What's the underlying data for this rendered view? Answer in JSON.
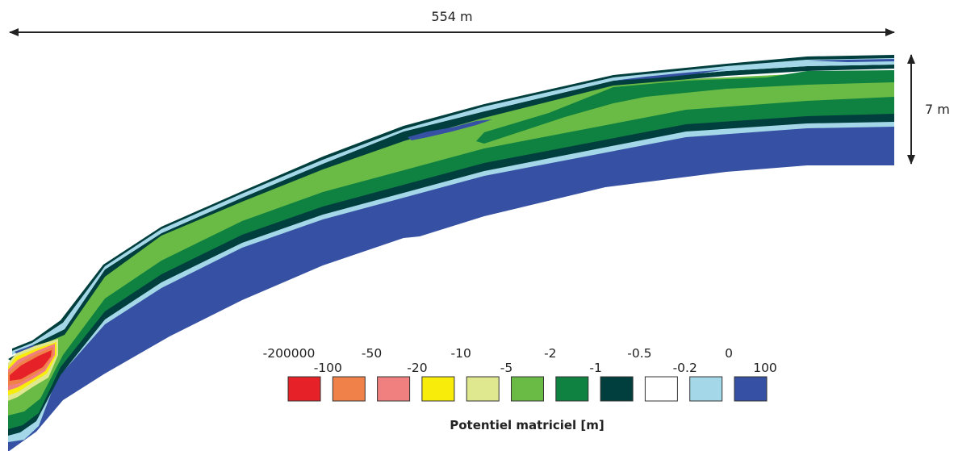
{
  "dimensions": {
    "horizontal_label": "554 m",
    "vertical_label": "7 m"
  },
  "legend": {
    "title": "Potentiel matriciel [m]",
    "upper_labels": [
      "-200000",
      "-50",
      "-10",
      "-2",
      "-0.5",
      "0"
    ],
    "lower_labels": [
      "-100",
      "-20",
      "-5",
      "-1",
      "-0.2",
      "100"
    ],
    "colors": [
      "#e62228",
      "#f08148",
      "#f08080",
      "#f8ec0a",
      "#dfe78f",
      "#6abb45",
      "#0f8140",
      "#013e3e",
      "#ffffff",
      "#a4d8e8",
      "#3651a3"
    ]
  },
  "palette": {
    "deep_blue": "#3651a3",
    "light_blue": "#a4d8e8",
    "dark_teal": "#013e3e",
    "dark_green": "#0f8140",
    "mid_green": "#6abb45",
    "pale_green": "#dfe78f",
    "yellow": "#f8ec0a",
    "pink": "#f08080",
    "orange": "#f08148",
    "red": "#e62228"
  }
}
